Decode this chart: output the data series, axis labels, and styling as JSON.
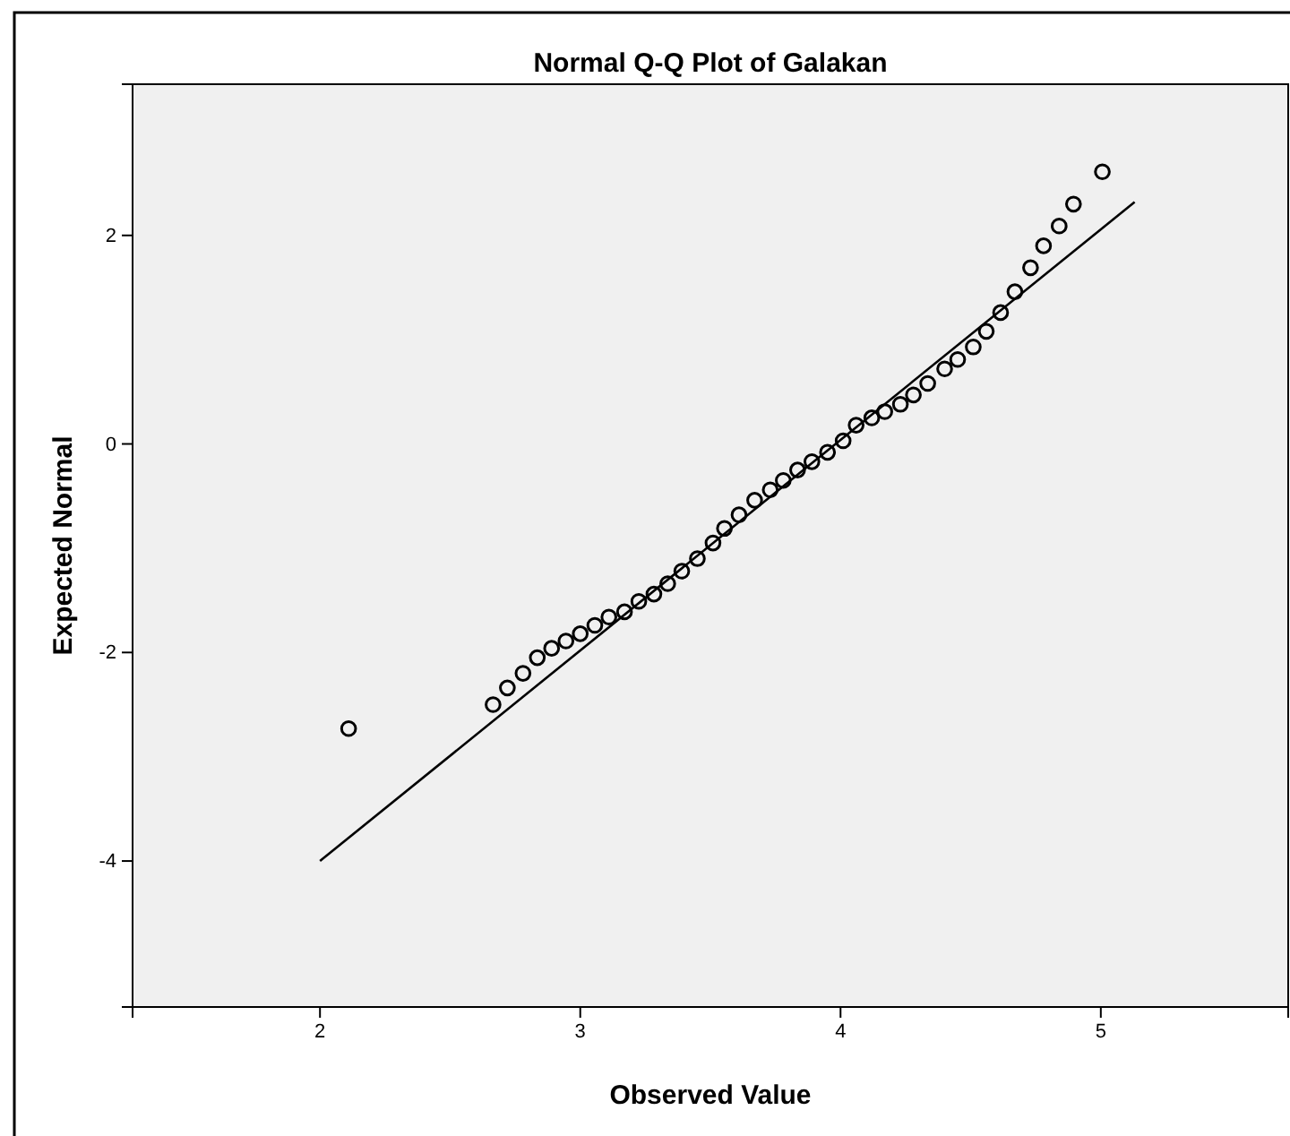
{
  "chart_data": {
    "type": "scatter",
    "title": "Normal Q-Q Plot of Galakan",
    "xlabel": "Observed Value",
    "ylabel": "Expected Normal",
    "xlim": [
      1.28,
      5.72
    ],
    "ylim": [
      -5.4,
      3.45
    ],
    "xticks": [
      2,
      3,
      4,
      5
    ],
    "yticks": [
      -4,
      -2,
      0,
      2
    ],
    "grid": false,
    "series": [
      {
        "type": "scatter",
        "marker": "circle",
        "color": "#000000",
        "x": [
          2.11,
          2.665,
          2.72,
          2.78,
          2.835,
          2.89,
          2.945,
          3.0,
          3.056,
          3.11,
          3.17,
          3.225,
          3.283,
          3.336,
          3.39,
          3.45,
          3.51,
          3.554,
          3.61,
          3.67,
          3.73,
          3.78,
          3.835,
          3.89,
          3.95,
          4.01,
          4.06,
          4.12,
          4.17,
          4.23,
          4.28,
          4.335,
          4.4,
          4.45,
          4.51,
          4.56,
          4.615,
          4.67,
          4.73,
          4.78,
          4.84,
          4.895,
          5.006
        ],
        "values": [
          -2.73,
          -2.5,
          -2.34,
          -2.2,
          -2.05,
          -1.96,
          -1.89,
          -1.82,
          -1.74,
          -1.66,
          -1.61,
          -1.51,
          -1.44,
          -1.34,
          -1.22,
          -1.1,
          -0.95,
          -0.81,
          -0.68,
          -0.54,
          -0.44,
          -0.35,
          -0.25,
          -0.17,
          -0.08,
          0.03,
          0.18,
          0.25,
          0.31,
          0.38,
          0.47,
          0.58,
          0.72,
          0.81,
          0.93,
          1.08,
          1.26,
          1.46,
          1.69,
          1.9,
          2.09,
          2.3,
          2.61
        ]
      },
      {
        "type": "line",
        "color": "#000000",
        "x": [
          2,
          5.13
        ],
        "values": [
          -4,
          2.32
        ]
      }
    ]
  }
}
